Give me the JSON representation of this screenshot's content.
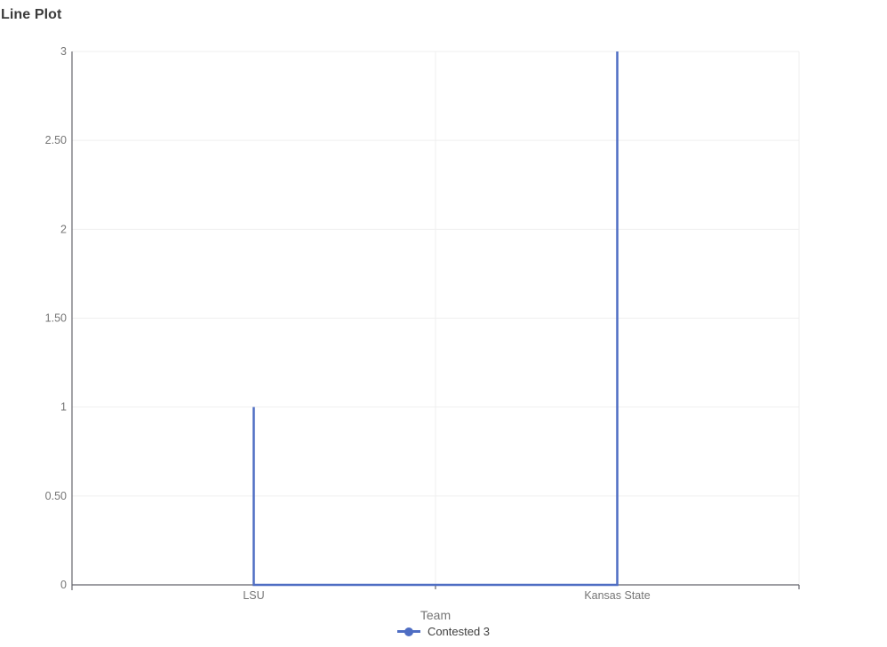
{
  "page": {
    "title": "Line Plot"
  },
  "chart_data": {
    "type": "line",
    "title": "Line Plot",
    "xlabel": "Team",
    "ylabel": "",
    "categories": [
      "LSU",
      "Kansas State"
    ],
    "series": [
      {
        "name": "Contested 3",
        "color": "#4e6dc3",
        "points": [
          {
            "category": "LSU",
            "value": 1
          },
          {
            "category": "LSU",
            "value": 0
          },
          {
            "category": "Kansas State",
            "value": 0
          },
          {
            "category": "Kansas State",
            "value": 3
          }
        ]
      }
    ],
    "ylim": [
      0,
      3
    ],
    "yticks": [
      {
        "value": 0,
        "label": "0"
      },
      {
        "value": 0.5,
        "label": "0.50"
      },
      {
        "value": 1,
        "label": "1"
      },
      {
        "value": 1.5,
        "label": "1.50"
      },
      {
        "value": 2,
        "label": "2"
      },
      {
        "value": 2.5,
        "label": "2.50"
      },
      {
        "value": 3,
        "label": "3"
      }
    ],
    "grid": true,
    "legend_position": "bottom",
    "colors": {
      "axis": "#64646c",
      "gridline": "#efefef",
      "tick_label": "#757575",
      "title_text": "#3b3b3b",
      "legend_text": "#3f3f3f"
    }
  }
}
